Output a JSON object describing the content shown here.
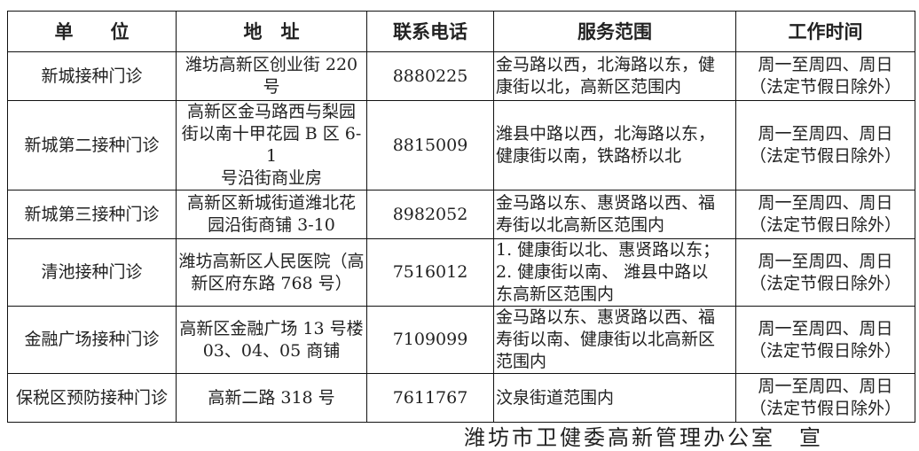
{
  "table": {
    "headers": [
      "单　　位",
      "地　址",
      "联系电话",
      "服务范围",
      "工作时间"
    ],
    "rows": [
      {
        "unit": "新城接种门诊",
        "address": "潍坊高新区创业街 220 号",
        "phone": "8880225",
        "scope": "金马路以西，北海路以东，健\n康街以北，高新区范围内",
        "hours": "周一至周四、周日\n（法定节假日除外）"
      },
      {
        "unit": "新城第二接种门诊",
        "address": "高新区金马路西与梨园\n街以南十甲花园 B 区 6-1\n号沿街商业房",
        "phone": "8815009",
        "scope": "潍县中路以西，北海路以东，\n健康街以南，铁路桥以北",
        "hours": "周一至周四、周日\n（法定节假日除外）"
      },
      {
        "unit": "新城第三接种门诊",
        "address": "高新区新城街道潍北花\n园沿街商铺 3-10",
        "phone": "8982052",
        "scope": "金马路以东、惠贤路以西、福\n寿街以北高新区范围内",
        "hours": "周一至周四、周日\n（法定节假日除外）"
      },
      {
        "unit": "清池接种门诊",
        "address": "潍坊高新区人民医院（高\n新区府东路 768 号）",
        "phone": "7516012",
        "scope": "1. 健康街以北、惠贤路以东；\n2. 健康街以南、 潍县中路以\n东高新区范围内",
        "hours": "周一至周四、周日\n（法定节假日除外）"
      },
      {
        "unit": "金融广场接种门诊",
        "address": "高新区金融广场 13 号楼\n03、04、05 商铺",
        "phone": "7109099",
        "scope": "金马路以东、惠贤路以西、福\n寿街以南、健康街以北高新区\n范围内",
        "hours": "周一至周四、周日\n（法定节假日除外）"
      },
      {
        "unit": "保税区预防接种门诊",
        "address": "高新二路 318 号",
        "phone": "7611767",
        "scope": "汶泉街道范围内",
        "hours": "周一至周四、周日\n（法定节假日除外）"
      }
    ]
  },
  "footer": "潍坊市卫健委高新管理办公室　宣"
}
